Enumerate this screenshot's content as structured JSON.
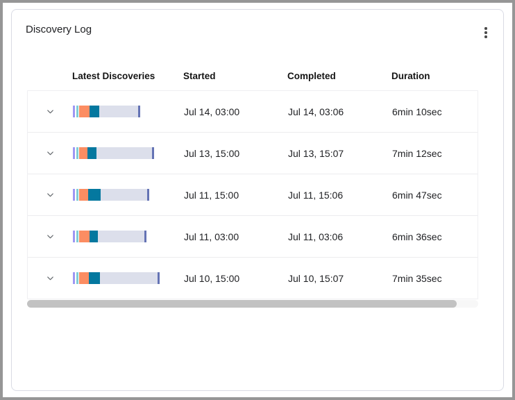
{
  "card": {
    "title": "Discovery Log"
  },
  "icons": {
    "menu": "kebab-menu",
    "row_expand": "chevron-down"
  },
  "table": {
    "columns": [
      "Latest Discoveries",
      "Started",
      "Completed",
      "Duration"
    ],
    "rows": [
      {
        "started": "Jul 14, 03:00",
        "completed": "Jul 14, 03:06",
        "duration": "6min 10sec",
        "bar": [
          [
            "purple",
            3
          ],
          [
            "gap",
            2
          ],
          [
            "teal_light",
            3
          ],
          [
            "gap",
            1
          ],
          [
            "orange",
            15
          ],
          [
            "teal_dark",
            14
          ],
          [
            "lavender",
            56
          ],
          [
            "end_cap",
            3
          ]
        ]
      },
      {
        "started": "Jul 13, 15:00",
        "completed": "Jul 13, 15:07",
        "duration": "7min 12sec",
        "bar": [
          [
            "purple",
            3
          ],
          [
            "gap",
            2
          ],
          [
            "teal_light",
            3
          ],
          [
            "gap",
            1
          ],
          [
            "orange",
            12
          ],
          [
            "teal_dark",
            13
          ],
          [
            "lavender",
            80
          ],
          [
            "end_cap",
            3
          ]
        ]
      },
      {
        "started": "Jul 11, 15:00",
        "completed": "Jul 11, 15:06",
        "duration": "6min 47sec",
        "bar": [
          [
            "purple",
            3
          ],
          [
            "gap",
            2
          ],
          [
            "teal_light",
            3
          ],
          [
            "gap",
            1
          ],
          [
            "orange",
            13
          ],
          [
            "teal_dark",
            18
          ],
          [
            "lavender",
            67
          ],
          [
            "end_cap",
            3
          ]
        ]
      },
      {
        "started": "Jul 11, 03:00",
        "completed": "Jul 11, 03:06",
        "duration": "6min 36sec",
        "bar": [
          [
            "purple",
            3
          ],
          [
            "gap",
            2
          ],
          [
            "teal_light",
            3
          ],
          [
            "gap",
            1
          ],
          [
            "orange",
            15
          ],
          [
            "teal_dark",
            12
          ],
          [
            "lavender",
            67
          ],
          [
            "end_cap",
            3
          ]
        ]
      },
      {
        "started": "Jul 10, 15:00",
        "completed": "Jul 10, 15:07",
        "duration": "7min 35sec",
        "bar": [
          [
            "purple",
            3
          ],
          [
            "gap",
            2
          ],
          [
            "teal_light",
            3
          ],
          [
            "gap",
            1
          ],
          [
            "orange",
            14
          ],
          [
            "teal_dark",
            16
          ],
          [
            "lavender",
            83
          ],
          [
            "end_cap",
            3
          ]
        ]
      }
    ]
  },
  "colors": {
    "purple": "#9e97f3",
    "teal_light": "#80ced6",
    "orange": "#fc8d62",
    "teal_dark": "#04789f",
    "lavender": "#dcdfeb",
    "end_cap": "#6473b4",
    "gap": "#ffffff"
  }
}
